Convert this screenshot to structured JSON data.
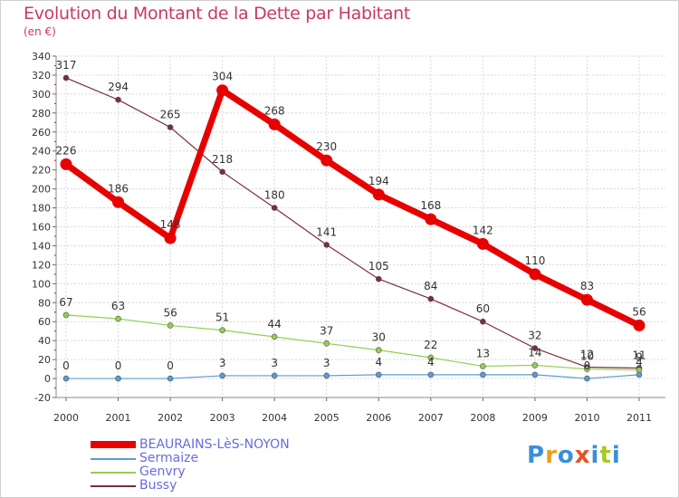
{
  "chart_data": {
    "type": "line",
    "title": "Evolution du Montant de la Dette par Habitant",
    "subtitle": "(en €)",
    "xlabel": "",
    "ylabel": "",
    "x": [
      "2000",
      "2001",
      "2002",
      "2003",
      "2004",
      "2005",
      "2006",
      "2007",
      "2008",
      "2009",
      "2010",
      "2011"
    ],
    "ylim": [
      -20,
      340
    ],
    "yticks": [
      -20,
      0,
      20,
      40,
      60,
      80,
      100,
      120,
      140,
      160,
      180,
      200,
      220,
      240,
      260,
      280,
      300,
      320,
      340
    ],
    "grid": true,
    "legend_position": "bottom-left",
    "series": [
      {
        "name": "BEAURAINS-LèS-NOYON",
        "color": "#e80000",
        "values": [
          226,
          186,
          148,
          304,
          268,
          230,
          194,
          168,
          142,
          110,
          83,
          56
        ],
        "labels": [
          "226",
          "186",
          "148",
          "304",
          "268",
          "230",
          "194",
          "168",
          "142",
          "110",
          "83",
          "56"
        ]
      },
      {
        "name": "Sermaize",
        "color": "#5b9bd5",
        "values": [
          0,
          0,
          0,
          3,
          3,
          3,
          4,
          4,
          4,
          4,
          0,
          4
        ],
        "labels": [
          "0",
          "0",
          "0",
          "3",
          "3",
          "3",
          "4",
          "4",
          "",
          "",
          "0",
          "4"
        ]
      },
      {
        "name": "Genvry",
        "color": "#92d050",
        "values": [
          67,
          63,
          56,
          51,
          44,
          37,
          30,
          22,
          13,
          14,
          10,
          9
        ],
        "labels": [
          "67",
          "63",
          "56",
          "51",
          "44",
          "37",
          "30",
          "22",
          "13",
          "14",
          "10",
          "9"
        ]
      },
      {
        "name": "Bussy",
        "color": "#7b2d3a",
        "values": [
          317,
          294,
          265,
          218,
          180,
          141,
          105,
          84,
          60,
          32,
          12,
          11
        ],
        "labels": [
          "317",
          "294",
          "265",
          "218",
          "180",
          "141",
          "105",
          "84",
          "60",
          "32",
          "12",
          "11"
        ]
      }
    ]
  },
  "logo": {
    "letters": [
      "P",
      "r",
      "o",
      "x",
      "i",
      "t",
      "i"
    ],
    "colors": [
      "#3a8fd8",
      "#e8a020",
      "#3a8fd8",
      "#e85020",
      "#3a8fd8",
      "#a8c820",
      "#3a8fd8"
    ]
  }
}
